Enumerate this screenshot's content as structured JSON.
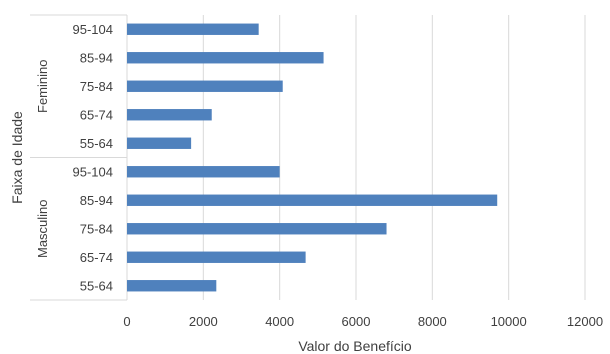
{
  "chart_data": {
    "type": "bar",
    "orientation": "horizontal",
    "xlabel": "Valor do Benefício",
    "ylabel": "Faixa de Idade",
    "xlim": [
      0,
      12000
    ],
    "xticks": [
      "0",
      "2000",
      "4000",
      "6000",
      "8000",
      "10000",
      "12000"
    ],
    "grid": "vertical",
    "bar_color": "#4f81bd",
    "groups": [
      {
        "name": "Feminino",
        "categories": [
          "95-104",
          "85-94",
          "75-84",
          "65-74",
          "55-64"
        ],
        "values": [
          3450,
          5150,
          4080,
          2220,
          1680
        ]
      },
      {
        "name": "Masculino",
        "categories": [
          "95-104",
          "85-94",
          "75-84",
          "65-74",
          "55-64"
        ],
        "values": [
          4000,
          9700,
          6800,
          4680,
          2340
        ]
      }
    ]
  }
}
